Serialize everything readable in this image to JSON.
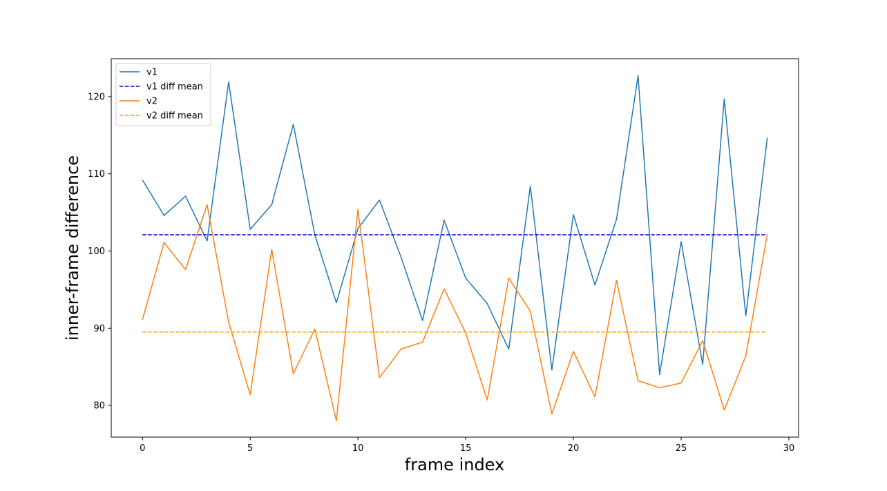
{
  "chart_data": {
    "type": "line",
    "title": "",
    "xlabel": "frame index",
    "ylabel": "inner-frame difference",
    "xlim": [
      -1.45,
      30.45
    ],
    "ylim": [
      75.9,
      124.9
    ],
    "xticks": [
      0,
      5,
      10,
      15,
      20,
      25,
      30
    ],
    "yticks": [
      80,
      90,
      100,
      110,
      120
    ],
    "grid": false,
    "legend_position": "upper-left",
    "x": [
      0,
      1,
      2,
      3,
      4,
      5,
      6,
      7,
      8,
      9,
      10,
      11,
      12,
      13,
      14,
      15,
      16,
      17,
      18,
      19,
      20,
      21,
      22,
      23,
      24,
      25,
      26,
      27,
      28,
      29
    ],
    "series": [
      {
        "name": "v1",
        "style": "solid",
        "color": "#1f77b4",
        "values": [
          109.2,
          104.6,
          107.1,
          101.3,
          121.9,
          102.8,
          106.0,
          116.4,
          102.1,
          93.3,
          102.9,
          106.6,
          99.2,
          91.0,
          104.0,
          96.5,
          93.2,
          87.3,
          108.4,
          84.6,
          104.7,
          95.6,
          104.1,
          122.7,
          84.0,
          101.2,
          85.3,
          119.7,
          91.6,
          114.7
        ]
      },
      {
        "name": "v1 diff mean",
        "style": "dashed",
        "color": "#0000cc",
        "values": [
          102.1,
          102.1,
          102.1,
          102.1,
          102.1,
          102.1,
          102.1,
          102.1,
          102.1,
          102.1,
          102.1,
          102.1,
          102.1,
          102.1,
          102.1,
          102.1,
          102.1,
          102.1,
          102.1,
          102.1,
          102.1,
          102.1,
          102.1,
          102.1,
          102.1,
          102.1,
          102.1,
          102.1,
          102.1,
          102.1
        ]
      },
      {
        "name": "v2",
        "style": "solid",
        "color": "#ff7f0e",
        "values": [
          91.1,
          101.1,
          97.6,
          106.0,
          90.8,
          81.4,
          100.2,
          84.1,
          89.9,
          78.0,
          105.4,
          83.6,
          87.3,
          88.2,
          95.1,
          89.4,
          80.7,
          96.5,
          92.2,
          78.9,
          87.0,
          81.1,
          96.2,
          83.2,
          82.3,
          82.9,
          88.4,
          79.4,
          86.4,
          102.2
        ]
      },
      {
        "name": "v2 diff mean",
        "style": "dashed",
        "color": "#ffa500",
        "values": [
          89.5,
          89.5,
          89.5,
          89.5,
          89.5,
          89.5,
          89.5,
          89.5,
          89.5,
          89.5,
          89.5,
          89.5,
          89.5,
          89.5,
          89.5,
          89.5,
          89.5,
          89.5,
          89.5,
          89.5,
          89.5,
          89.5,
          89.5,
          89.5,
          89.5,
          89.5,
          89.5,
          89.5,
          89.5,
          89.5
        ]
      }
    ]
  }
}
